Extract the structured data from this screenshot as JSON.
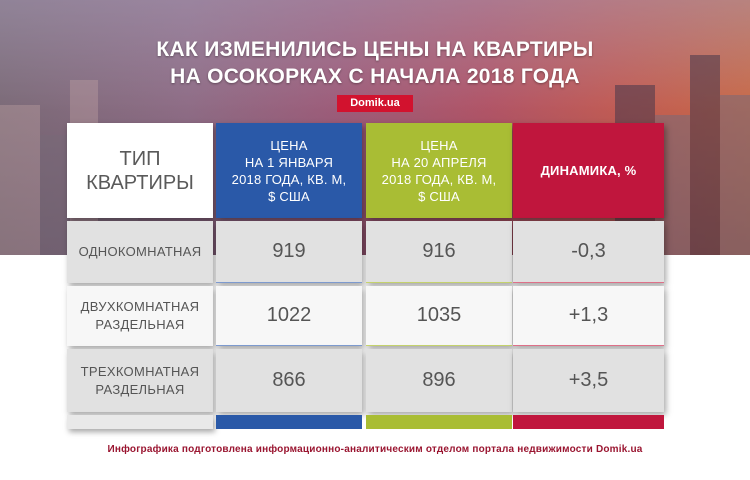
{
  "header": {
    "title_line1": "КАК ИЗМЕНИЛИСЬ ЦЕНЫ НА КВАРТИРЫ",
    "title_line2": "НА ОСОКОРКАХ С НАЧАЛА 2018 ГОДА",
    "brand": "Domik.ua"
  },
  "chart_data": {
    "type": "table",
    "title": "КАК ИЗМЕНИЛИСЬ ЦЕНЫ НА КВАРТИРЫ НА ОСОКОРКАХ С НАЧАЛА 2018 ГОДА",
    "columns": [
      "ТИП КВАРТИРЫ",
      "ЦЕНА НА 1 ЯНВАРЯ 2018 ГОДА, КВ. М, $ США",
      "ЦЕНА НА 20 АПРЕЛЯ 2018 ГОДА, КВ. М, $ США",
      "ДИНАМИКА, %"
    ],
    "header_lines": {
      "type": [
        "ТИП",
        "КВАРТИРЫ"
      ],
      "col1": [
        "ЦЕНА",
        "НА 1 ЯНВАРЯ",
        "2018 ГОДА, КВ. М,",
        "$ США"
      ],
      "col2": [
        "ЦЕНА",
        "НА 20 АПРЕЛЯ",
        "2018 ГОДА, КВ. М,",
        "$ США"
      ],
      "col3": [
        "ДИНАМИКА, %"
      ]
    },
    "rows": [
      {
        "type_lines": [
          "ОДНОКОМНАТНАЯ"
        ],
        "jan": "919",
        "apr": "916",
        "change": "-0,3"
      },
      {
        "type_lines": [
          "ДВУХКОМНАТНАЯ",
          "РАЗДЕЛЬНАЯ"
        ],
        "jan": "1022",
        "apr": "1035",
        "change": "+1,3"
      },
      {
        "type_lines": [
          "ТРЕХКОМНАТНАЯ",
          "РАЗДЕЛЬНАЯ"
        ],
        "jan": "866",
        "apr": "896",
        "change": "+3,5"
      }
    ]
  },
  "colors": {
    "col1": "#2a59a8",
    "col2": "#a9bd34",
    "col3": "#c0163d",
    "brand": "#d2122e"
  },
  "footer": {
    "note": "Инфографика подготовлена информационно-аналитическим отделом портала недвижимости Domik.ua"
  }
}
